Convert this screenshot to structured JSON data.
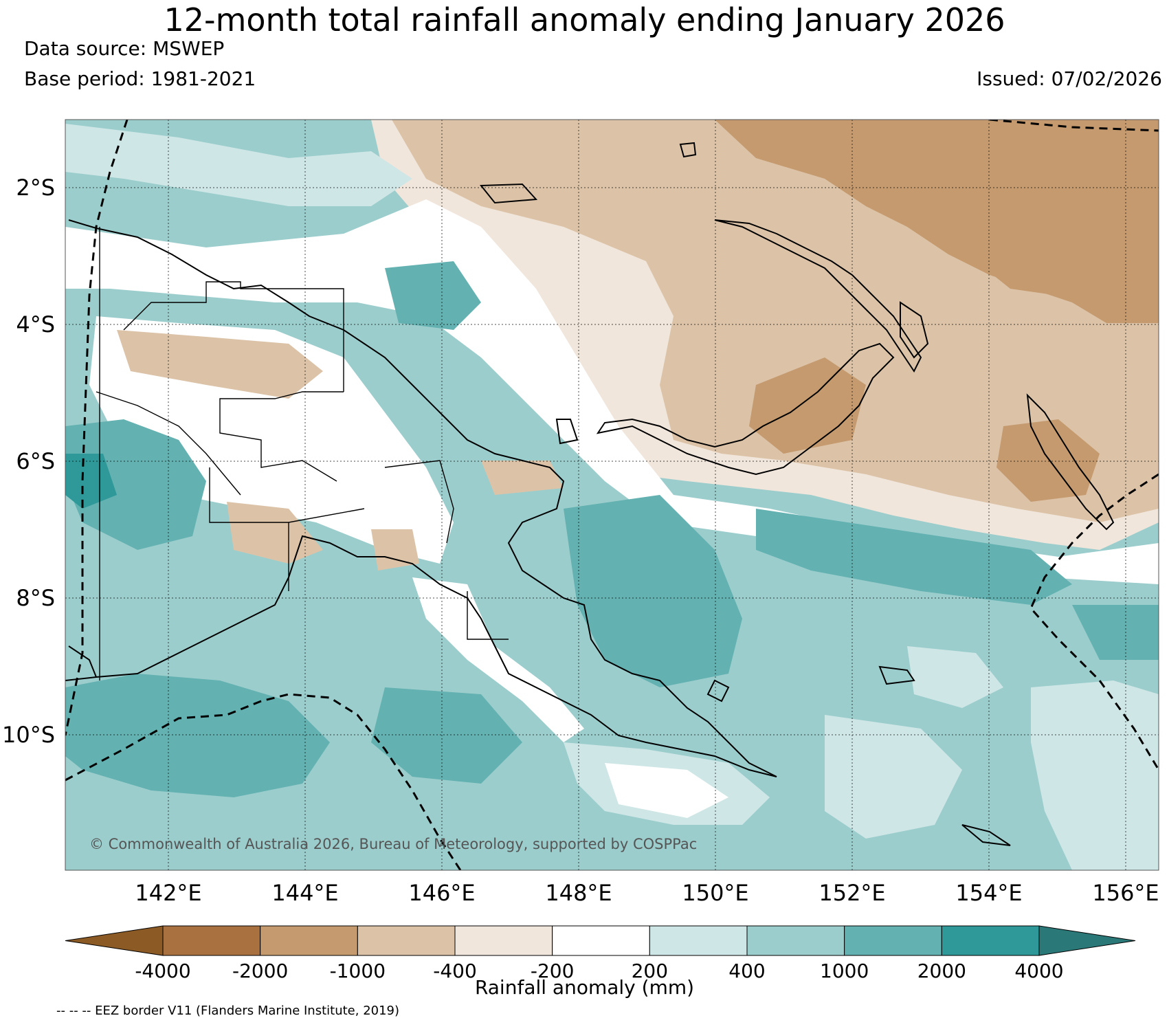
{
  "title": "12-month total rainfall anomaly ending January 2026",
  "data_source": "Data source: MSWEP",
  "base_period": "Base period: 1981-2021",
  "issued": "Issued: 07/02/2026",
  "copyright": "© Commonwealth of Australia 2026, Bureau of Meteorology, supported by COSPPac",
  "lat_labels": [
    "2°S",
    "4°S",
    "6°S",
    "8°S",
    "10°S"
  ],
  "lon_labels": [
    "142°E",
    "144°E",
    "146°E",
    "148°E",
    "150°E",
    "152°E",
    "154°E",
    "156°E"
  ],
  "colorbar": {
    "title": "Rainfall anomaly (mm)",
    "ticks": [
      "-4000",
      "-2000",
      "-1000",
      "-400",
      "-200",
      "200",
      "400",
      "1000",
      "2000",
      "4000"
    ],
    "colors": [
      "#8c5a24",
      "#a97140",
      "#c49a6e",
      "#dcc3a8",
      "#f1e6dc",
      "#ffffff",
      "#cfe6e6",
      "#9ccdcd",
      "#63b1b1",
      "#2f9898",
      "#2a7878"
    ]
  },
  "eez_note": "-- -- -- EEZ border V11 (Flanders Marine Institute, 2019)"
}
